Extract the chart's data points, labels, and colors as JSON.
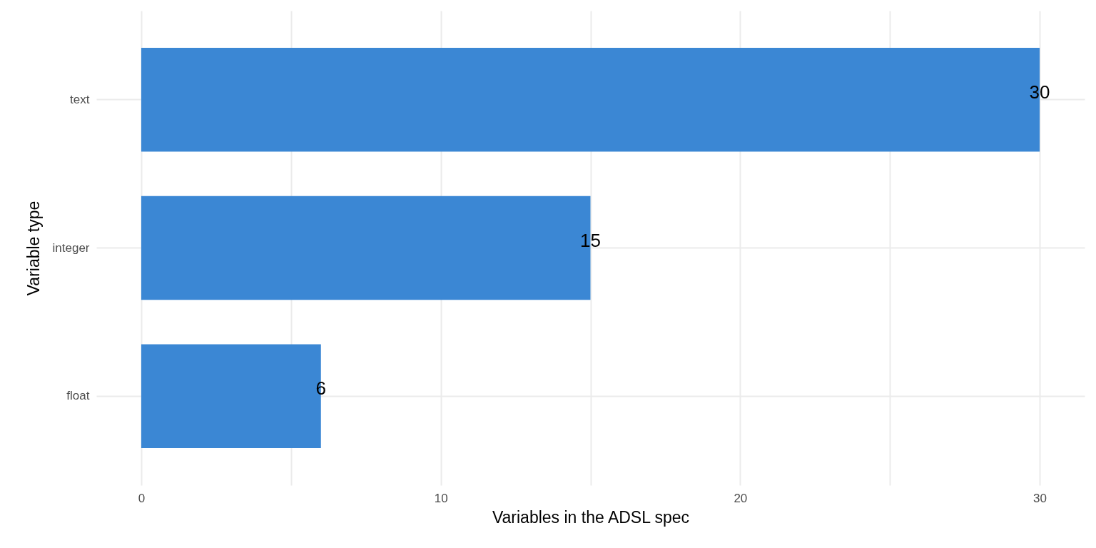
{
  "chart_data": {
    "type": "bar",
    "orientation": "horizontal",
    "categories": [
      "text",
      "integer",
      "float"
    ],
    "values": [
      30,
      15,
      6
    ],
    "color": "#3b87d4",
    "xlabel": "Variables in the ADSL spec",
    "ylabel": "Variable type",
    "xlim": [
      -1.5,
      31.5
    ],
    "xticks": [
      0,
      {
        "value": 5,
        "label": null
      },
      10,
      {
        "value": 15,
        "label": null
      },
      20,
      {
        "value": 25,
        "label": null
      },
      30
    ],
    "grid": true,
    "data_labels": true
  }
}
